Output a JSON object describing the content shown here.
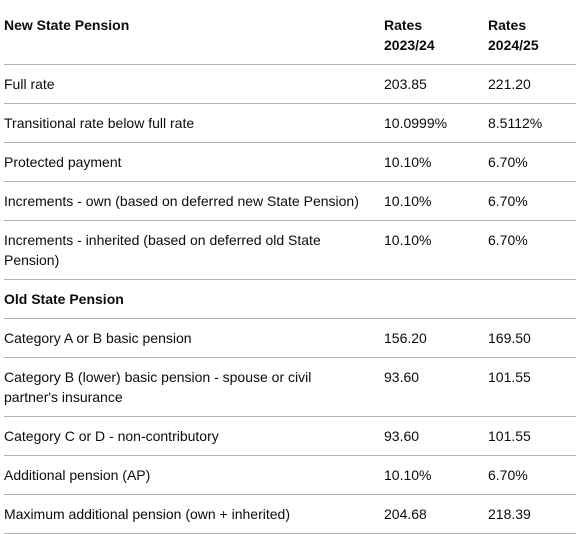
{
  "table": {
    "headers": {
      "col1": "New State Pension",
      "col2_line1": "Rates",
      "col2_line2": "2023/24",
      "col3_line1": "Rates",
      "col3_line2": "2024/25"
    },
    "rows": [
      {
        "label": "Full rate",
        "rate_2023": "203.85",
        "rate_2024": "221.20"
      },
      {
        "label": "Transitional rate below full rate",
        "rate_2023": "10.0999%",
        "rate_2024": "8.5112%"
      },
      {
        "label": "Protected payment",
        "rate_2023": "10.10%",
        "rate_2024": "6.70%"
      },
      {
        "label": "Increments - own (based on deferred new State Pension)",
        "rate_2023": "10.10%",
        "rate_2024": "6.70%"
      },
      {
        "label": "Increments - inherited (based on deferred old State Pension)",
        "rate_2023": "10.10%",
        "rate_2024": "6.70%"
      }
    ],
    "section2_title": "Old State Pension",
    "rows2": [
      {
        "label": "Category A or B basic pension",
        "rate_2023": "156.20",
        "rate_2024": "169.50"
      },
      {
        "label": "Category B (lower) basic pension - spouse or civil partner's insurance",
        "rate_2023": "93.60",
        "rate_2024": "101.55"
      },
      {
        "label": "Category C or D - non-contributory",
        "rate_2023": "93.60",
        "rate_2024": "101.55"
      },
      {
        "label": "Additional pension (AP)",
        "rate_2023": "10.10%",
        "rate_2024": "6.70%"
      },
      {
        "label": "Maximum additional pension (own + inherited)",
        "rate_2023": "204.68",
        "rate_2024": "218.39"
      }
    ]
  }
}
